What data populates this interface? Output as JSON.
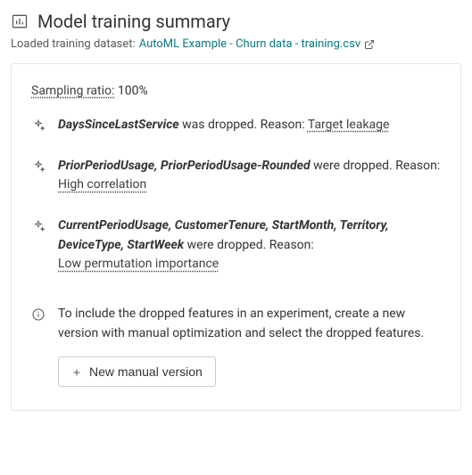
{
  "header": {
    "title": "Model training summary",
    "dataset_label": "Loaded training dataset:",
    "dataset_name": "AutoML Example - Churn data - training.csv"
  },
  "sampling": {
    "label": "Sampling ratio:",
    "value": "100%"
  },
  "drops": [
    {
      "features": "DaysSinceLastService",
      "verb": "was dropped. Reason:",
      "reason": "Target leakage",
      "break_before_reason": false
    },
    {
      "features": "PriorPeriodUsage, PriorPeriodUsage-Rounded",
      "verb": "were dropped. Reason:",
      "reason": "High correlation",
      "break_before_reason": true
    },
    {
      "features": "CurrentPeriodUsage, CustomerTenure, StartMonth, Territory, DeviceType, StartWeek",
      "verb": "were dropped. Reason:",
      "reason": "Low permutation importance",
      "break_before_reason": true
    }
  ],
  "info": {
    "text": "To include the dropped features in an experiment, create a new version with manual optimization and select the dropped features.",
    "button_label": "New manual version"
  },
  "icons": {
    "header": "bar-chart-icon",
    "sparkle": "sparkle-icon",
    "info": "info-icon",
    "external": "external-link-icon",
    "plus": "plus-icon"
  }
}
